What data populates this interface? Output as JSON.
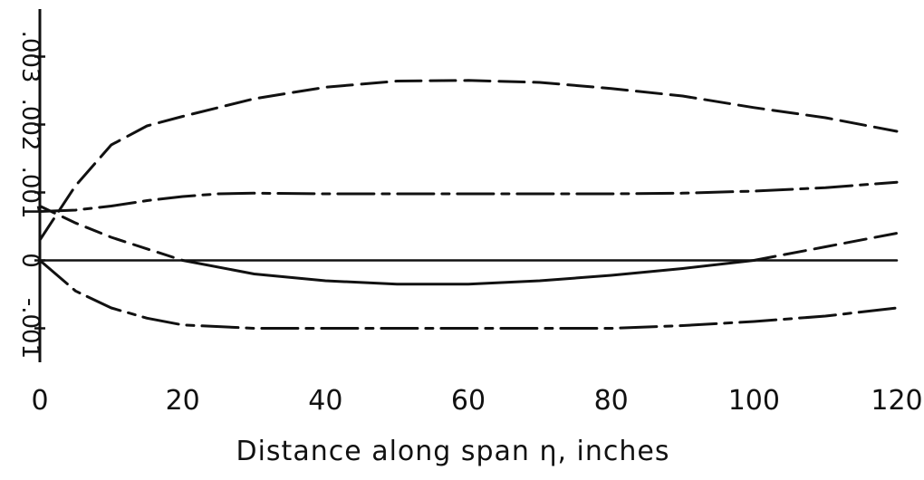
{
  "chart_data": {
    "type": "line",
    "title": "",
    "xlabel": "Distance along span η, inches",
    "ylabel": "",
    "xlim": [
      0,
      120
    ],
    "ylim": [
      -0.0015,
      0.0037
    ],
    "x_ticks": [
      {
        "value": 0,
        "label": "0"
      },
      {
        "value": 20,
        "label": "20"
      },
      {
        "value": 40,
        "label": "40"
      },
      {
        "value": 60,
        "label": "60"
      },
      {
        "value": 80,
        "label": "80"
      },
      {
        "value": 100,
        "label": "100"
      },
      {
        "value": 120,
        "label": "120"
      }
    ],
    "y_ticks": [
      {
        "value": -0.001,
        "label": "-.001"
      },
      {
        "value": 0,
        "label": "0"
      },
      {
        "value": 0.001,
        "label": ".001"
      },
      {
        "value": 0.002,
        "label": ".002"
      },
      {
        "value": 0.003,
        "label": ".003"
      }
    ],
    "grid": false,
    "legend": "none",
    "series": [
      {
        "style": "long-dash",
        "points": [
          [
            0,
            0.0003
          ],
          [
            5,
            0.0011
          ],
          [
            10,
            0.0017
          ],
          [
            15,
            0.00198
          ],
          [
            20,
            0.00212
          ],
          [
            30,
            0.00238
          ],
          [
            40,
            0.00255
          ],
          [
            50,
            0.00264
          ],
          [
            60,
            0.00265
          ],
          [
            70,
            0.00262
          ],
          [
            80,
            0.00253
          ],
          [
            90,
            0.00242
          ],
          [
            100,
            0.00225
          ],
          [
            110,
            0.0021
          ],
          [
            120,
            0.0019
          ]
        ]
      },
      {
        "style": "dash-dot",
        "points": [
          [
            0,
            0.00072
          ],
          [
            5,
            0.00074
          ],
          [
            10,
            0.0008
          ],
          [
            15,
            0.00088
          ],
          [
            20,
            0.00094
          ],
          [
            25,
            0.00098
          ],
          [
            30,
            0.00099
          ],
          [
            40,
            0.00098
          ],
          [
            50,
            0.00098
          ],
          [
            60,
            0.00098
          ],
          [
            70,
            0.00098
          ],
          [
            80,
            0.00098
          ],
          [
            90,
            0.00099
          ],
          [
            100,
            0.00102
          ],
          [
            110,
            0.00107
          ],
          [
            120,
            0.00115
          ]
        ]
      },
      {
        "style": "solid-dashed-ends",
        "points": [
          [
            0,
            0.0008
          ],
          [
            5,
            0.00055
          ],
          [
            10,
            0.00034
          ],
          [
            15,
            0.00017
          ],
          [
            20,
            0.0
          ],
          [
            30,
            -0.0002
          ],
          [
            40,
            -0.0003
          ],
          [
            50,
            -0.00035
          ],
          [
            60,
            -0.00035
          ],
          [
            70,
            -0.0003
          ],
          [
            80,
            -0.00022
          ],
          [
            90,
            -0.00012
          ],
          [
            100,
            0.0
          ],
          [
            110,
            0.0002
          ],
          [
            120,
            0.0004
          ]
        ]
      },
      {
        "style": "dash-dot",
        "points": [
          [
            0,
            0.0
          ],
          [
            5,
            -0.00045
          ],
          [
            10,
            -0.0007
          ],
          [
            15,
            -0.00085
          ],
          [
            20,
            -0.00095
          ],
          [
            30,
            -0.001
          ],
          [
            40,
            -0.001
          ],
          [
            50,
            -0.001
          ],
          [
            60,
            -0.001
          ],
          [
            70,
            -0.001
          ],
          [
            80,
            -0.001
          ],
          [
            90,
            -0.00096
          ],
          [
            100,
            -0.0009
          ],
          [
            110,
            -0.00082
          ],
          [
            120,
            -0.0007
          ]
        ]
      },
      {
        "style": "solid",
        "points": [
          [
            0,
            0.0
          ],
          [
            120,
            0.0
          ]
        ]
      }
    ]
  }
}
